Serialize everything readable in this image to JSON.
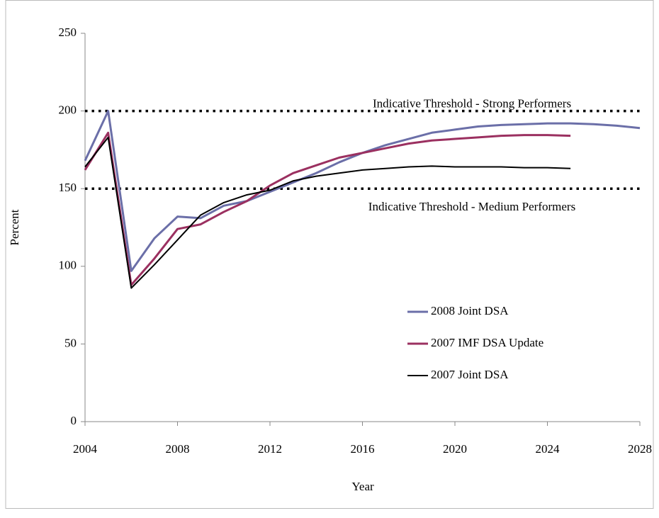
{
  "chart_data": {
    "type": "line",
    "x_label": "Year",
    "y_label": "Percent",
    "x": [
      2004,
      2005,
      2006,
      2007,
      2008,
      2009,
      2010,
      2011,
      2012,
      2013,
      2014,
      2015,
      2016,
      2017,
      2018,
      2019,
      2020,
      2021,
      2022,
      2023,
      2024,
      2025,
      2026,
      2027,
      2028
    ],
    "series": [
      {
        "name": "2008 Joint DSA",
        "color": "#6b6fa8",
        "values": [
          168,
          200,
          97,
          118,
          132,
          131,
          139,
          142,
          148,
          154,
          160,
          167,
          173,
          178,
          182,
          186,
          188,
          190,
          191,
          191.5,
          192,
          192,
          191.5,
          190.5,
          189
        ]
      },
      {
        "name": "2007 IMF DSA Update",
        "color": "#9b3060",
        "values": [
          162,
          186,
          88,
          105,
          124,
          127,
          135,
          142,
          152,
          160,
          165,
          170,
          173,
          176,
          179,
          181,
          182,
          183,
          184,
          184.5,
          184.5,
          184,
          null,
          null,
          null
        ]
      },
      {
        "name": "2007 Joint DSA",
        "color": "#000000",
        "values": [
          164,
          183,
          86,
          101,
          117,
          133,
          141,
          146,
          149,
          155,
          158,
          160,
          162,
          163,
          164,
          164.5,
          164,
          164,
          164,
          163.5,
          163.5,
          163,
          null,
          null,
          null
        ]
      }
    ],
    "thresholds": [
      {
        "value": 200,
        "label": "Indicative Threshold - Strong Performers"
      },
      {
        "value": 150,
        "label": "Indicative Threshold - Medium Performers"
      }
    ],
    "xlim": [
      2004,
      2028
    ],
    "xticks": [
      2004,
      2008,
      2012,
      2016,
      2020,
      2024,
      2028
    ],
    "ylim": [
      0,
      250
    ],
    "yticks": [
      0,
      50,
      100,
      150,
      200,
      250
    ]
  }
}
